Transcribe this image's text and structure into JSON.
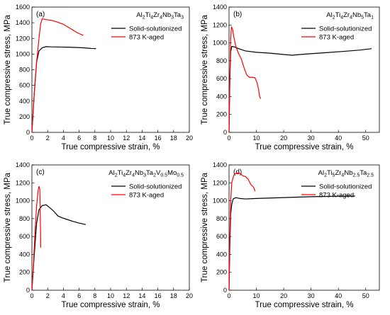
{
  "colors": {
    "solid": "#000000",
    "aged": "#ff0000"
  },
  "chart_data": [
    {
      "id": "a",
      "type": "line",
      "panel_label": "(a)",
      "composition": [
        {
          "t": "Al"
        },
        {
          "t": "2",
          "s": 1
        },
        {
          "t": "Ti"
        },
        {
          "t": "4",
          "s": 1
        },
        {
          "t": "Zr"
        },
        {
          "t": "4",
          "s": 1
        },
        {
          "t": "Nb"
        },
        {
          "t": "3",
          "s": 1
        },
        {
          "t": "Ta"
        },
        {
          "t": "3",
          "s": 1
        }
      ],
      "xlabel": "True compressive strain, %",
      "ylabel": "True compressive stress, MPa",
      "xlim": [
        0,
        20
      ],
      "ylim": [
        0,
        1600
      ],
      "xticks": [
        0,
        2,
        4,
        6,
        8,
        10,
        12,
        14,
        16,
        18,
        20
      ],
      "yticks": [
        0,
        200,
        400,
        600,
        800,
        1000,
        1200,
        1400,
        1600
      ],
      "legend_position": "top-right",
      "series": [
        {
          "name": "Solid-solutionized",
          "color": "solid",
          "points": [
            [
              0,
              0
            ],
            [
              0.3,
              500
            ],
            [
              0.6,
              900
            ],
            [
              0.9,
              1040
            ],
            [
              1.3,
              1080
            ],
            [
              1.8,
              1095
            ],
            [
              2.5,
              1092
            ],
            [
              3.5,
              1090
            ],
            [
              4.5,
              1088
            ],
            [
              5.5,
              1085
            ],
            [
              6.5,
              1080
            ],
            [
              7.5,
              1072
            ],
            [
              8.1,
              1070
            ]
          ]
        },
        {
          "name": "873 K-aged",
          "color": "aged",
          "points": [
            [
              0,
              0
            ],
            [
              0.3,
              500
            ],
            [
              0.6,
              900
            ],
            [
              0.9,
              1200
            ],
            [
              1.1,
              1380
            ],
            [
              1.3,
              1450
            ],
            [
              1.8,
              1440
            ],
            [
              2.5,
              1430
            ],
            [
              3.2,
              1410
            ],
            [
              4.0,
              1380
            ],
            [
              5.0,
              1320
            ],
            [
              5.8,
              1270
            ],
            [
              6.5,
              1240
            ]
          ]
        }
      ]
    },
    {
      "id": "b",
      "type": "line",
      "panel_label": "(b)",
      "composition": [
        {
          "t": "Al"
        },
        {
          "t": "2",
          "s": 1
        },
        {
          "t": "Ti"
        },
        {
          "t": "4",
          "s": 1
        },
        {
          "t": "Zr"
        },
        {
          "t": "4",
          "s": 1
        },
        {
          "t": "Nb"
        },
        {
          "t": "5",
          "s": 1
        },
        {
          "t": "Ta"
        },
        {
          "t": "1",
          "s": 1
        }
      ],
      "xlabel": "True compressive strain, %",
      "ylabel": "True compressive stress, MPa",
      "xlim": [
        0,
        55
      ],
      "ylim": [
        0,
        1400
      ],
      "xticks": [
        0,
        10,
        20,
        30,
        40,
        50
      ],
      "yticks": [
        0,
        200,
        400,
        600,
        800,
        1000,
        1200,
        1400
      ],
      "legend_position": "top-right",
      "series": [
        {
          "name": "Solid-solutionized",
          "color": "solid",
          "points": [
            [
              0,
              0
            ],
            [
              0.3,
              600
            ],
            [
              0.6,
              900
            ],
            [
              1,
              960
            ],
            [
              2,
              955
            ],
            [
              4,
              930
            ],
            [
              6,
              910
            ],
            [
              10,
              895
            ],
            [
              15,
              885
            ],
            [
              20,
              870
            ],
            [
              23,
              862
            ],
            [
              28,
              875
            ],
            [
              35,
              890
            ],
            [
              42,
              905
            ],
            [
              48,
              920
            ],
            [
              52,
              935
            ]
          ]
        },
        {
          "name": "873 K-aged",
          "color": "aged",
          "points": [
            [
              0,
              0
            ],
            [
              0.3,
              600
            ],
            [
              0.6,
              1050
            ],
            [
              0.9,
              1180
            ],
            [
              1.3,
              1150
            ],
            [
              1.8,
              1060
            ],
            [
              2.5,
              960
            ],
            [
              3.5,
              880
            ],
            [
              4.5,
              820
            ],
            [
              5.5,
              720
            ],
            [
              6.5,
              640
            ],
            [
              7.5,
              615
            ],
            [
              8.5,
              615
            ],
            [
              9.5,
              610
            ],
            [
              10.2,
              560
            ],
            [
              10.8,
              480
            ],
            [
              11.2,
              400
            ],
            [
              11.5,
              380
            ]
          ]
        }
      ]
    },
    {
      "id": "c",
      "type": "line",
      "panel_label": "(c)",
      "composition": [
        {
          "t": "Al"
        },
        {
          "t": "2",
          "s": 1
        },
        {
          "t": "Ti"
        },
        {
          "t": "4",
          "s": 1
        },
        {
          "t": "Zr"
        },
        {
          "t": "4",
          "s": 1
        },
        {
          "t": "Nb"
        },
        {
          "t": "3",
          "s": 1
        },
        {
          "t": "Ta"
        },
        {
          "t": "2",
          "s": 1
        },
        {
          "t": "V"
        },
        {
          "t": "0.5",
          "s": 1
        },
        {
          "t": "Mo"
        },
        {
          "t": "0.5",
          "s": 1
        }
      ],
      "xlabel": "True compressive strain, %",
      "ylabel": "True compressive stress, MPa",
      "xlim": [
        0,
        20
      ],
      "ylim": [
        0,
        1400
      ],
      "xticks": [
        0,
        2,
        4,
        6,
        8,
        10,
        12,
        14,
        16,
        18,
        20
      ],
      "yticks": [
        0,
        200,
        400,
        600,
        800,
        1000,
        1200,
        1400
      ],
      "legend_position": "top-right",
      "series": [
        {
          "name": "Solid-solutionized",
          "color": "solid",
          "points": [
            [
              0,
              0
            ],
            [
              0.3,
              400
            ],
            [
              0.6,
              750
            ],
            [
              0.9,
              900
            ],
            [
              1.3,
              945
            ],
            [
              1.8,
              955
            ],
            [
              2.3,
              920
            ],
            [
              2.8,
              880
            ],
            [
              3.3,
              830
            ],
            [
              3.8,
              810
            ],
            [
              4.5,
              790
            ],
            [
              5.2,
              770
            ],
            [
              6.0,
              750
            ],
            [
              6.8,
              735
            ]
          ]
        },
        {
          "name": "873 K-aged",
          "color": "aged",
          "points": [
            [
              0,
              0
            ],
            [
              0.2,
              300
            ],
            [
              0.4,
              650
            ],
            [
              0.6,
              950
            ],
            [
              0.8,
              1120
            ],
            [
              0.9,
              1160
            ],
            [
              1.0,
              1130
            ],
            [
              1.05,
              900
            ],
            [
              1.1,
              650
            ],
            [
              1.12,
              480
            ]
          ]
        }
      ]
    },
    {
      "id": "d",
      "type": "line",
      "panel_label": "(d)",
      "composition": [
        {
          "t": "Al"
        },
        {
          "t": "2",
          "s": 1
        },
        {
          "t": "Ti"
        },
        {
          "t": "5",
          "s": 1
        },
        {
          "t": "Zr"
        },
        {
          "t": "4",
          "s": 1
        },
        {
          "t": "Nb"
        },
        {
          "t": "2.5",
          "s": 1
        },
        {
          "t": "Ta"
        },
        {
          "t": "2.5",
          "s": 1
        }
      ],
      "xlabel": "True compressive strain, %",
      "ylabel": "True compressive stress, MPa",
      "xlim": [
        0,
        55
      ],
      "ylim": [
        0,
        1400
      ],
      "xticks": [
        0,
        10,
        20,
        30,
        40,
        50
      ],
      "yticks": [
        0,
        200,
        400,
        600,
        800,
        1000,
        1200,
        1400
      ],
      "legend_position": "top-right",
      "series": [
        {
          "name": "Solid-solutionized",
          "color": "solid",
          "points": [
            [
              0,
              0
            ],
            [
              0.3,
              500
            ],
            [
              0.6,
              850
            ],
            [
              1,
              960
            ],
            [
              1.5,
              1020
            ],
            [
              2.5,
              1035
            ],
            [
              4,
              1025
            ],
            [
              6,
              1020
            ],
            [
              10,
              1025
            ],
            [
              15,
              1030
            ],
            [
              20,
              1035
            ],
            [
              25,
              1040
            ],
            [
              30,
              1045
            ],
            [
              35,
              1048
            ],
            [
              40,
              1050
            ],
            [
              45,
              1052
            ],
            [
              46,
              1052
            ]
          ]
        },
        {
          "name": "873 K-aged",
          "color": "aged",
          "points": [
            [
              0,
              0
            ],
            [
              0.3,
              600
            ],
            [
              0.6,
              1000
            ],
            [
              1,
              1200
            ],
            [
              1.5,
              1260
            ],
            [
              2,
              1300
            ],
            [
              3,
              1310
            ],
            [
              4,
              1305
            ],
            [
              5,
              1280
            ],
            [
              6,
              1270
            ],
            [
              7,
              1240
            ],
            [
              8,
              1180
            ],
            [
              9,
              1150
            ],
            [
              9.5,
              1110
            ]
          ]
        }
      ]
    }
  ]
}
